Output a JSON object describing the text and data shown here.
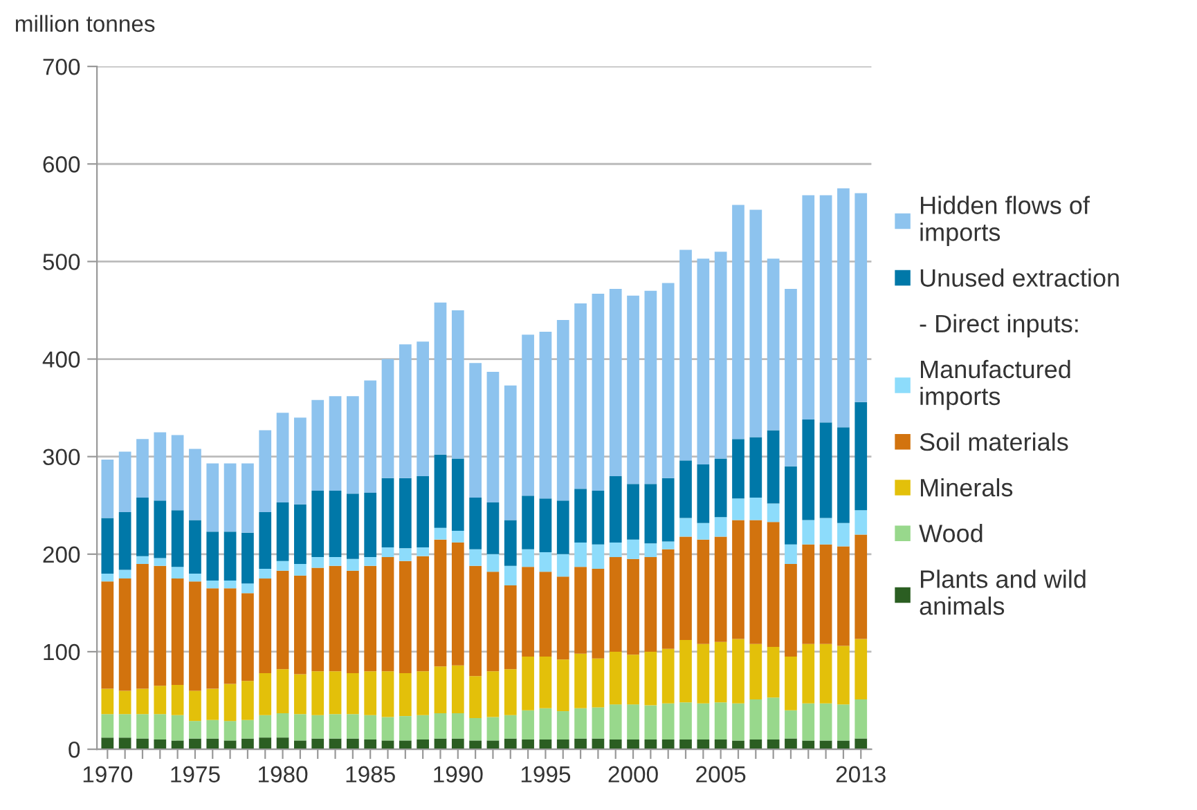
{
  "chart_data": {
    "type": "bar",
    "stacked": true,
    "ylabel": "million tonnes",
    "categories": [
      "1970",
      null,
      null,
      null,
      null,
      "1975",
      null,
      null,
      null,
      null,
      "1980",
      null,
      null,
      null,
      null,
      "1985",
      null,
      null,
      null,
      null,
      "1990",
      null,
      null,
      null,
      null,
      "1995",
      null,
      null,
      null,
      null,
      "2000",
      null,
      null,
      null,
      null,
      "2005",
      null,
      null,
      null,
      null,
      null,
      null,
      null,
      "2013"
    ],
    "series": [
      {
        "name": "Plants and wild\nanimals",
        "color": "#2b5e22",
        "values": [
          12,
          12,
          11,
          10,
          9,
          11,
          11,
          9,
          11,
          12,
          12,
          9,
          11,
          11,
          11,
          10,
          9,
          9,
          10,
          11,
          11,
          9,
          9,
          11,
          10,
          10,
          10,
          11,
          11,
          10,
          10,
          10,
          10,
          10,
          10,
          10,
          9,
          10,
          10,
          11,
          9,
          9,
          9,
          11
        ]
      },
      {
        "name": "Wood",
        "color": "#98d88c",
        "values": [
          24,
          24,
          25,
          26,
          26,
          18,
          19,
          20,
          19,
          23,
          25,
          27,
          24,
          25,
          25,
          25,
          24,
          25,
          25,
          26,
          26,
          23,
          24,
          24,
          30,
          32,
          29,
          31,
          32,
          36,
          36,
          35,
          37,
          38,
          37,
          38,
          38,
          41,
          43,
          29,
          38,
          38,
          37,
          40
        ]
      },
      {
        "name": "Minerals",
        "color": "#e3c00a",
        "values": [
          26,
          24,
          26,
          29,
          31,
          31,
          32,
          38,
          40,
          43,
          45,
          41,
          45,
          44,
          42,
          45,
          47,
          44,
          45,
          48,
          49,
          43,
          47,
          47,
          55,
          53,
          53,
          56,
          50,
          54,
          51,
          55,
          56,
          64,
          61,
          62,
          66,
          57,
          52,
          55,
          61,
          61,
          60,
          62
        ]
      },
      {
        "name": "Soil materials",
        "color": "#d2730e",
        "values": [
          110,
          115,
          128,
          123,
          109,
          112,
          103,
          98,
          90,
          97,
          101,
          101,
          106,
          108,
          105,
          108,
          117,
          115,
          118,
          130,
          126,
          113,
          102,
          86,
          92,
          87,
          85,
          89,
          92,
          97,
          98,
          97,
          102,
          106,
          107,
          108,
          122,
          127,
          128,
          95,
          102,
          102,
          102,
          107
        ]
      },
      {
        "name": "Manufactured\nimports",
        "color": "#8ddcfb",
        "values": [
          8,
          9,
          8,
          8,
          12,
          8,
          8,
          8,
          10,
          10,
          10,
          12,
          11,
          9,
          12,
          9,
          10,
          13,
          9,
          12,
          12,
          17,
          18,
          20,
          18,
          20,
          23,
          25,
          25,
          15,
          20,
          14,
          8,
          19,
          17,
          20,
          22,
          23,
          19,
          20,
          25,
          27,
          24,
          25
        ]
      },
      {
        "name": "Unused extraction",
        "color": "#0078a8",
        "values": [
          57,
          59,
          60,
          59,
          58,
          55,
          50,
          50,
          52,
          58,
          60,
          61,
          68,
          68,
          67,
          66,
          71,
          72,
          73,
          75,
          74,
          53,
          53,
          47,
          55,
          55,
          55,
          55,
          55,
          68,
          57,
          61,
          65,
          59,
          60,
          60,
          61,
          62,
          75,
          80,
          103,
          98,
          98,
          111
        ]
      },
      {
        "name": "Hidden flows of\nimports",
        "color": "#8dc3ee",
        "values": [
          60,
          62,
          60,
          70,
          77,
          73,
          70,
          70,
          71,
          84,
          92,
          89,
          93,
          97,
          100,
          115,
          122,
          137,
          138,
          156,
          152,
          138,
          134,
          138,
          165,
          171,
          185,
          190,
          202,
          192,
          193,
          198,
          200,
          216,
          211,
          212,
          240,
          233,
          176,
          182,
          230,
          233,
          245,
          214
        ]
      }
    ],
    "annotations": [
      "- Direct inputs:"
    ],
    "ylim": [
      0,
      700
    ],
    "yticks": [
      0,
      100,
      200,
      300,
      400,
      500,
      600,
      700
    ],
    "grid": "y",
    "legend": "right"
  }
}
